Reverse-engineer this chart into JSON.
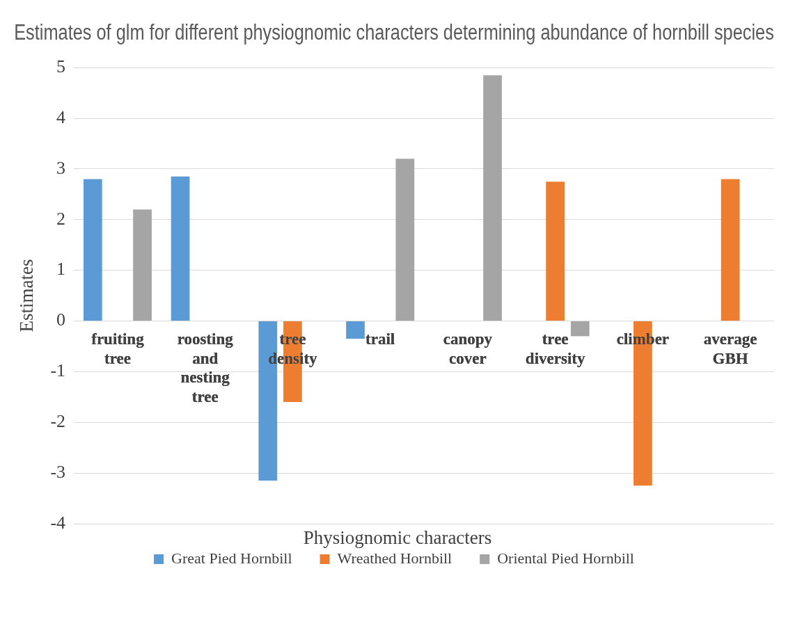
{
  "chart_data": {
    "type": "bar",
    "title": "Estimates of glm for different physiognomic characters determining abundance of hornbill species",
    "xlabel": "Physiognomic characters",
    "ylabel": "Estimates",
    "categories": [
      "fruiting tree",
      "roosting and nesting tree",
      "tree density",
      "trail",
      "canopy cover",
      "tree diversity",
      "climber",
      "average GBH"
    ],
    "series": [
      {
        "name": "Great Pied Hornbill",
        "color": "#5b9bd5",
        "values": [
          2.8,
          2.85,
          -3.15,
          -0.35,
          0,
          0,
          0,
          0
        ]
      },
      {
        "name": "Wreathed Hornbill",
        "color": "#ed7d31",
        "values": [
          0,
          0,
          -1.6,
          0,
          0,
          2.75,
          -3.25,
          2.8
        ]
      },
      {
        "name": "Oriental Pied Hornbill",
        "color": "#a5a5a5",
        "values": [
          2.2,
          0,
          0,
          3.2,
          4.85,
          -0.3,
          0,
          0
        ]
      }
    ],
    "ylim": [
      -4,
      5
    ],
    "yticks": [
      -4,
      -3,
      -2,
      -1,
      0,
      1,
      2,
      3,
      4,
      5
    ],
    "grid": "y",
    "legend": "bottom"
  }
}
